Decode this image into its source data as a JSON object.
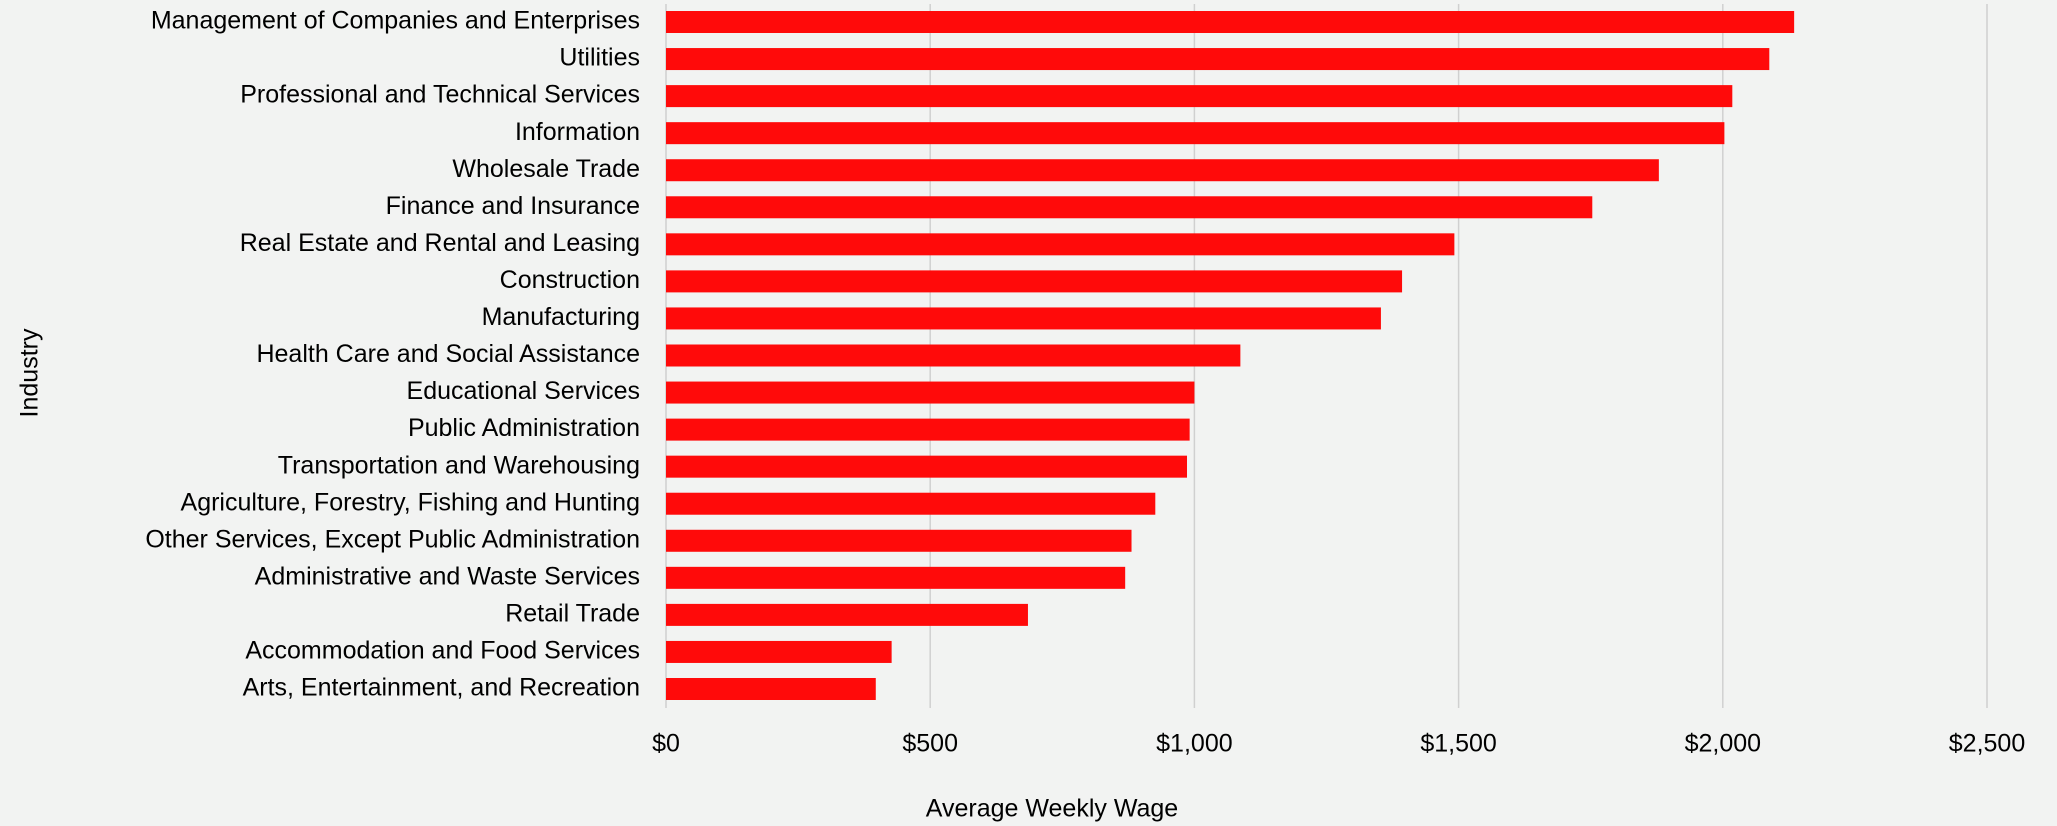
{
  "chart_data": {
    "type": "bar",
    "orientation": "horizontal",
    "x_label": "Average Weekly Wage",
    "y_label": "Industry",
    "categories": [
      "Management of Companies and Enterprises",
      "Utilities",
      "Professional and Technical Services",
      "Information",
      "Wholesale Trade",
      "Finance and Insurance",
      "Real Estate and Rental and Leasing",
      "Construction",
      "Manufacturing",
      "Health Care and Social Assistance",
      "Educational Services",
      "Public Administration",
      "Transportation and Warehousing",
      "Agriculture, Forestry, Fishing and Hunting",
      "Other Services, Except Public Administration",
      "Administrative and Waste Services",
      "Retail Trade",
      "Accommodation and Food Services",
      "Arts, Entertainment, and Recreation"
    ],
    "values": [
      2135,
      2088,
      2018,
      2003,
      1879,
      1753,
      1492,
      1393,
      1353,
      1087,
      1000,
      991,
      986,
      926,
      881,
      869,
      685,
      427,
      397
    ],
    "color": "#ff0a0a",
    "xlim": [
      0,
      2500
    ],
    "xticks": [
      {
        "value": 0,
        "label": "$0"
      },
      {
        "value": 500,
        "label": "$500"
      },
      {
        "value": 1000,
        "label": "$1,000"
      },
      {
        "value": 1500,
        "label": "$1,500"
      },
      {
        "value": 2000,
        "label": "$2,000"
      },
      {
        "value": 2500,
        "label": "$2,500"
      }
    ],
    "grid": true
  }
}
